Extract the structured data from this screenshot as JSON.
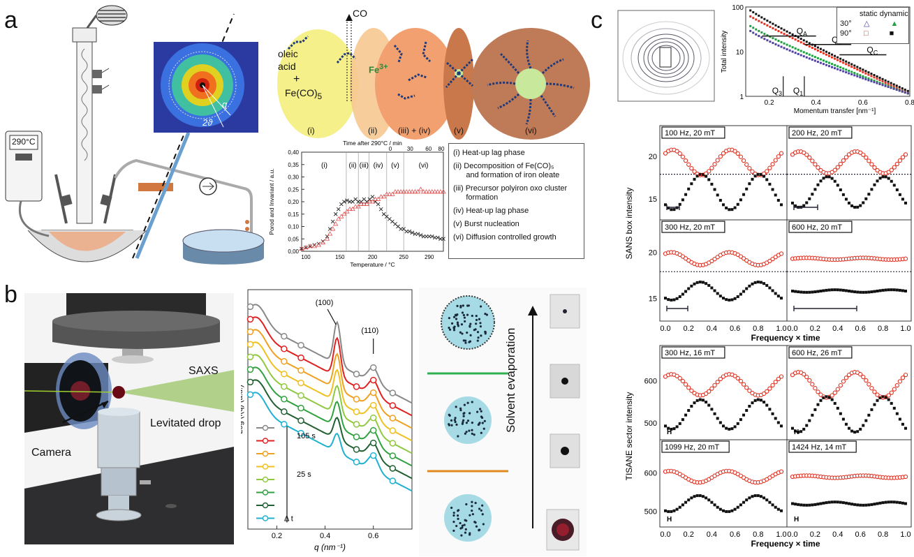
{
  "panels": {
    "a": "a",
    "b": "b",
    "c": "c"
  },
  "a": {
    "thermometer": "290°C",
    "co_label": "CO",
    "oleic": [
      "oleic",
      "acid"
    ],
    "plus": "+",
    "feco5": "Fe(CO)",
    "feco5_sub": "5",
    "fe3": "Fe",
    "fe3_sup": "3+",
    "stage_labels": [
      "(i)",
      "(ii)",
      "(iii) + (iv)",
      "(v)",
      "(vi)"
    ],
    "saxs_q": "q",
    "saxs_2theta": "2ϑ",
    "legend": [
      "(i) Heat-up lag phase",
      "(ii) Decomposition of Fe(CO)₅",
      "      and formation of iron oleate",
      "(iii) Precursor polyiron oxo cluster",
      "      formation",
      "(iv) Heat-up lag phase",
      "(v) Burst nucleation",
      "(vi) Diffusion controlled  growth"
    ]
  },
  "b": {
    "saxs": "SAXS",
    "levitated": "Levitated drop",
    "camera": "Camera",
    "solvent": "Solvent evaporation"
  },
  "c": {
    "legend_header": [
      "static",
      "dynamic"
    ],
    "legend_rows": [
      "30°",
      "90°"
    ],
    "sans_ylabel": "SANS box intensity",
    "tisane_ylabel": "TISANE sector intensity",
    "xlabel": "Frequency × time",
    "mid_panels": [
      "100 Hz, 20 mT",
      "200 Hz, 20 mT",
      "300 Hz, 20 mT",
      "600 Hz, 20 mT"
    ],
    "bot_panels": [
      "300 Hz, 16 mT",
      "600 Hz, 26 mT",
      "1099 Hz, 20 mT",
      "1424 Hz, 14 mT"
    ],
    "h_marker": "H"
  },
  "chart_data": [
    {
      "type": "scatter",
      "xlabel": "Temperature / °C",
      "ylabel": "Porod and Invariant / a.u.",
      "x2label": "Time after 290°C / min",
      "xticks": [
        "100",
        "150",
        "200",
        "250",
        "290"
      ],
      "x2ticks": [
        "0",
        "30",
        "60",
        "80"
      ],
      "ylim": [
        0,
        0.4
      ],
      "yticks": [
        "0,00",
        "0,05",
        "0,10",
        "0,15",
        "0,20",
        "0,25",
        "0,30",
        "0,35",
        "0,40"
      ],
      "regions": [
        "(i)",
        "(ii)",
        "(iii)",
        "(iv)",
        "(v)",
        "(vi)"
      ],
      "series": [
        {
          "name": "Porod",
          "color": "#222222",
          "x": [
            0.0,
            0.03,
            0.06,
            0.09,
            0.12,
            0.15,
            0.18,
            0.2,
            0.22,
            0.24,
            0.26,
            0.28,
            0.3,
            0.32,
            0.34,
            0.36,
            0.38,
            0.4,
            0.42,
            0.44,
            0.46,
            0.48,
            0.5,
            0.52,
            0.54,
            0.56,
            0.58,
            0.6,
            0.62,
            0.64,
            0.66,
            0.68,
            0.7,
            0.72,
            0.74,
            0.76,
            0.78,
            0.8,
            0.82,
            0.84,
            0.86,
            0.88,
            0.9,
            0.92,
            0.94,
            0.96,
            0.98,
            1.0
          ],
          "y": [
            0.01,
            0.015,
            0.02,
            0.025,
            0.03,
            0.04,
            0.06,
            0.09,
            0.12,
            0.15,
            0.17,
            0.19,
            0.2,
            0.205,
            0.2,
            0.2,
            0.21,
            0.2,
            0.2,
            0.21,
            0.2,
            0.21,
            0.22,
            0.2,
            0.19,
            0.17,
            0.15,
            0.14,
            0.13,
            0.12,
            0.11,
            0.1,
            0.09,
            0.09,
            0.08,
            0.08,
            0.075,
            0.07,
            0.07,
            0.065,
            0.06,
            0.06,
            0.06,
            0.06,
            0.055,
            0.055,
            0.05,
            0.05
          ]
        },
        {
          "name": "Invariant",
          "color": "#e05050",
          "x": [
            0.0,
            0.03,
            0.06,
            0.09,
            0.12,
            0.15,
            0.18,
            0.2,
            0.22,
            0.24,
            0.26,
            0.28,
            0.3,
            0.32,
            0.34,
            0.36,
            0.38,
            0.4,
            0.42,
            0.44,
            0.46,
            0.48,
            0.5,
            0.52,
            0.54,
            0.56,
            0.58,
            0.6,
            0.62,
            0.64,
            0.66,
            0.68,
            0.7,
            0.72,
            0.74,
            0.76,
            0.78,
            0.8,
            0.82,
            0.84,
            0.86,
            0.88,
            0.9,
            0.92,
            0.94,
            0.96,
            0.98,
            1.0
          ],
          "y": [
            0.01,
            0.015,
            0.02,
            0.02,
            0.025,
            0.035,
            0.05,
            0.07,
            0.09,
            0.11,
            0.13,
            0.14,
            0.15,
            0.16,
            0.17,
            0.17,
            0.18,
            0.18,
            0.19,
            0.19,
            0.19,
            0.2,
            0.2,
            0.21,
            0.21,
            0.22,
            0.22,
            0.23,
            0.23,
            0.23,
            0.24,
            0.24,
            0.24,
            0.24,
            0.24,
            0.24,
            0.24,
            0.24,
            0.24,
            0.25,
            0.24,
            0.24,
            0.24,
            0.24,
            0.24,
            0.24,
            0.24,
            0.24
          ]
        }
      ]
    },
    {
      "type": "line",
      "xlabel": "q (nm⁻¹)",
      "ylabel": "Log (I(q) (a.u.)",
      "xticks": [
        "0.2",
        "0.4",
        "0.6"
      ],
      "annotations": [
        "(100)",
        "(110)"
      ],
      "legend": [
        "105 s",
        "25 s",
        "Δ t"
      ],
      "series": [
        {
          "color": "#888888",
          "marker": "triangle-up"
        },
        {
          "color": "#e02020",
          "marker": "circle"
        },
        {
          "color": "#f0a020",
          "marker": "star"
        },
        {
          "color": "#f0c020",
          "marker": "triangle-down"
        },
        {
          "color": "#90c840",
          "marker": "diamond"
        },
        {
          "color": "#30a040",
          "marker": "circle"
        },
        {
          "color": "#206030",
          "marker": "triangle-right"
        },
        {
          "color": "#20b0d0",
          "marker": "square"
        }
      ]
    },
    {
      "type": "line",
      "xlabel": "Momentum transfer [nm⁻¹]",
      "ylabel": "Total intensity",
      "xticks": [
        "0.2",
        "0.4",
        "0.6",
        "0.8"
      ],
      "yticks": [
        "1",
        "10",
        "100"
      ],
      "annotations": [
        "Q",
        "Q",
        "Q",
        "Q",
        "Q"
      ],
      "annotation_subs": [
        "A",
        "B",
        "C",
        "3",
        "1"
      ]
    },
    {
      "type": "scatter",
      "ylabel": "SANS box intensity",
      "xlabel": "Frequency × time",
      "xticks": [
        "0.0",
        "0.2",
        "0.4",
        "0.6",
        "0.8",
        "1.0"
      ],
      "yticks": [
        "15",
        "20"
      ]
    },
    {
      "type": "scatter",
      "ylabel": "TISANE sector intensity",
      "xlabel": "Frequency × time",
      "xticks": [
        "0.0",
        "0.2",
        "0.4",
        "0.6",
        "0.8",
        "1.0"
      ],
      "yticks": [
        "500",
        "600"
      ]
    }
  ]
}
